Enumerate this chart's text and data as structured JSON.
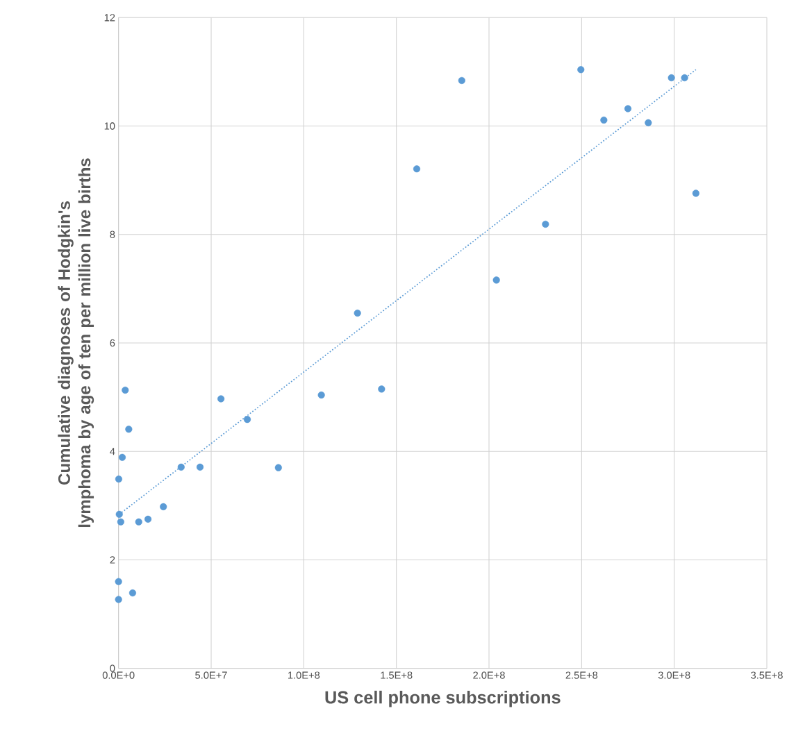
{
  "chart_data": {
    "type": "scatter",
    "xlabel": "US cell phone subscriptions",
    "ylabel": "Cumulative diagnoses of Hodgkin's lymphoma by age of ten per million live births",
    "xlim": [
      0,
      350000000
    ],
    "ylim": [
      0,
      12
    ],
    "xticks": [
      {
        "value": 0,
        "label": "0.0E+0"
      },
      {
        "value": 50000000,
        "label": "5.0E+7"
      },
      {
        "value": 100000000,
        "label": "1.0E+8"
      },
      {
        "value": 150000000,
        "label": "1.5E+8"
      },
      {
        "value": 200000000,
        "label": "2.0E+8"
      },
      {
        "value": 250000000,
        "label": "2.5E+8"
      },
      {
        "value": 300000000,
        "label": "3.0E+8"
      },
      {
        "value": 350000000,
        "label": "3.5E+8"
      }
    ],
    "yticks": [
      0,
      2,
      4,
      6,
      8,
      10,
      12
    ],
    "grid": true,
    "series": [
      {
        "color": "#5b9bd5",
        "marker": "circle",
        "x": [
          3600000,
          5500000,
          2000000,
          100000,
          400000,
          1200000,
          10900000,
          15900000,
          24200000,
          33800000,
          44000000,
          55300000,
          69500000,
          86300000,
          109500000,
          0,
          7600000,
          0,
          129000000,
          142000000,
          161000000,
          185300000,
          204000000,
          230500000,
          249600000,
          262000000,
          275000000,
          286000000,
          298500000,
          305600000,
          311700000
        ],
        "values": [
          5.13,
          4.41,
          3.89,
          3.49,
          2.84,
          2.7,
          2.7,
          2.75,
          2.98,
          3.71,
          3.71,
          4.97,
          4.59,
          3.7,
          5.04,
          1.6,
          1.39,
          1.27,
          6.55,
          5.15,
          9.21,
          10.84,
          7.16,
          8.19,
          11.04,
          10.11,
          10.32,
          10.06,
          10.89,
          10.89,
          8.76
        ]
      },
      {
        "type": "line",
        "color": "#5b9bd5",
        "marker": "none",
        "line_style": "dotted",
        "x": [
          400000,
          311700000
        ],
        "values": [
          2.84,
          11.04
        ]
      }
    ]
  }
}
